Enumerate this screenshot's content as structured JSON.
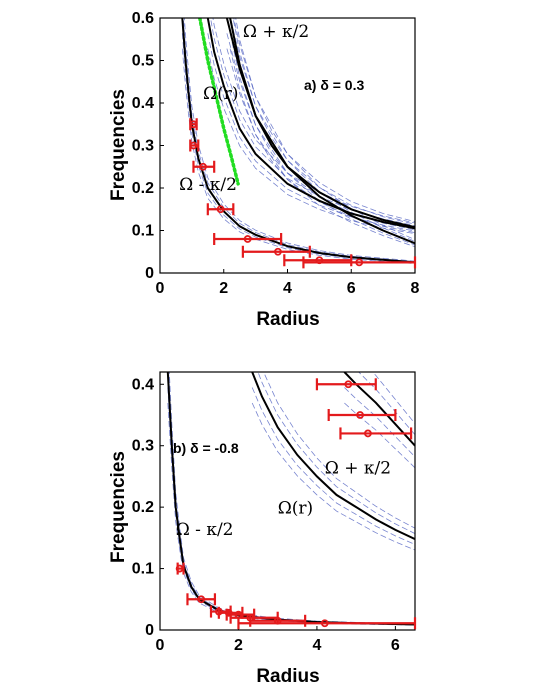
{
  "chart_data": [
    {
      "type": "line",
      "panel_label": "a) δ = 0.3",
      "xlabel": "Radius",
      "ylabel": "Frequencies",
      "xlim": [
        0,
        8
      ],
      "ylim": [
        0,
        0.6
      ],
      "xticks": [
        "0",
        "2",
        "4",
        "6",
        "8"
      ],
      "yticks": [
        "0",
        "0.1",
        "0.2",
        "0.3",
        "0.4",
        "0.5",
        "0.6"
      ],
      "annotations": [
        {
          "text": "Ω + κ/2",
          "x": 2.6,
          "y": 0.555
        },
        {
          "text": "Ω(r)",
          "x": 1.35,
          "y": 0.41
        },
        {
          "text": "Ω - κ/2",
          "x": 0.6,
          "y": 0.195
        }
      ],
      "curves": [
        {
          "label": "Ω + κ/2",
          "x": [
            1.5,
            1.7,
            2,
            2.5,
            3,
            4,
            5,
            6,
            7,
            8
          ],
          "y": [
            0.6,
            0.52,
            0.44,
            0.34,
            0.28,
            0.21,
            0.17,
            0.14,
            0.12,
            0.105
          ]
        },
        {
          "label": "Ω(r)",
          "x": [
            2.2,
            2.5,
            3,
            3.5,
            4,
            5,
            6,
            7,
            8
          ],
          "y": [
            0.6,
            0.49,
            0.37,
            0.3,
            0.25,
            0.18,
            0.135,
            0.1,
            0.07
          ]
        },
        {
          "label": "Ω - κ/2",
          "x": [
            0.7,
            0.8,
            0.9,
            1,
            1.2,
            1.5,
            2,
            2.5,
            3,
            4,
            5,
            6,
            8
          ],
          "y": [
            0.6,
            0.5,
            0.42,
            0.35,
            0.27,
            0.2,
            0.145,
            0.11,
            0.09,
            0.063,
            0.047,
            0.037,
            0.025
          ]
        },
        {
          "label": "Ω + κ/2 (outer)",
          "x": [
            2.1,
            2.5,
            3,
            4,
            5,
            6,
            7,
            8
          ],
          "y": [
            0.6,
            0.48,
            0.37,
            0.25,
            0.19,
            0.15,
            0.125,
            0.108
          ]
        }
      ],
      "green_dotted": {
        "x": [
          1.25,
          1.5,
          1.75,
          2,
          2.25,
          2.45
        ],
        "y": [
          0.6,
          0.5,
          0.42,
          0.34,
          0.27,
          0.21
        ]
      },
      "points": [
        {
          "x": 1.05,
          "y": 0.35,
          "xerr": [
            0.95,
            1.15
          ]
        },
        {
          "x": 1.05,
          "y": 0.3,
          "xerr": [
            0.95,
            1.2
          ]
        },
        {
          "x": 1.35,
          "y": 0.25,
          "xerr": [
            1.05,
            1.7
          ]
        },
        {
          "x": 1.9,
          "y": 0.15,
          "xerr": [
            1.5,
            2.3
          ]
        },
        {
          "x": 2.75,
          "y": 0.08,
          "xerr": [
            1.7,
            3.8
          ]
        },
        {
          "x": 3.7,
          "y": 0.05,
          "xerr": [
            2.6,
            4.7
          ]
        },
        {
          "x": 5.0,
          "y": 0.03,
          "xerr": [
            3.9,
            6.0
          ]
        },
        {
          "x": 6.25,
          "y": 0.025,
          "xerr": [
            4.5,
            8.0
          ]
        }
      ]
    },
    {
      "type": "line",
      "panel_label": "b) δ = -0.8",
      "xlabel": "Radius",
      "ylabel": "Frequencies",
      "xlim": [
        0,
        6.5
      ],
      "ylim": [
        0,
        0.42
      ],
      "xticks": [
        "0",
        "2",
        "4",
        "6"
      ],
      "yticks": [
        "0",
        "0.1",
        "0.2",
        "0.3",
        "0.4"
      ],
      "annotations": [
        {
          "text": "Ω + κ/2",
          "x": 4.2,
          "y": 0.255
        },
        {
          "text": "Ω(r)",
          "x": 3.0,
          "y": 0.19
        },
        {
          "text": "Ω - κ/2",
          "x": 0.4,
          "y": 0.155
        }
      ],
      "curves": [
        {
          "label": "Ω(r)",
          "x": [
            2.35,
            2.6,
            3,
            3.5,
            4,
            4.5,
            5,
            5.5,
            6,
            6.5
          ],
          "y": [
            0.42,
            0.38,
            0.33,
            0.285,
            0.25,
            0.22,
            0.2,
            0.18,
            0.163,
            0.148
          ]
        },
        {
          "label": "Ω + κ/2",
          "x": [
            4.7,
            5,
            5.5,
            6,
            6.5
          ],
          "y": [
            0.42,
            0.4,
            0.37,
            0.335,
            0.3
          ]
        },
        {
          "label": "Ω - κ/2",
          "x": [
            0.2,
            0.3,
            0.4,
            0.5,
            0.6,
            0.8,
            1,
            1.5,
            2,
            3,
            4,
            5,
            6.5
          ],
          "y": [
            0.42,
            0.3,
            0.2,
            0.15,
            0.105,
            0.07,
            0.05,
            0.032,
            0.024,
            0.017,
            0.013,
            0.011,
            0.009
          ]
        }
      ],
      "points": [
        {
          "x": 4.8,
          "y": 0.4,
          "xerr": [
            4.0,
            5.5
          ]
        },
        {
          "x": 5.1,
          "y": 0.35,
          "xerr": [
            4.3,
            6.0
          ]
        },
        {
          "x": 5.3,
          "y": 0.32,
          "xerr": [
            4.6,
            6.4
          ]
        },
        {
          "x": 0.5,
          "y": 0.1,
          "xerr": [
            0.45,
            0.6
          ]
        },
        {
          "x": 1.05,
          "y": 0.05,
          "xerr": [
            0.7,
            1.4
          ]
        },
        {
          "x": 1.5,
          "y": 0.03,
          "xerr": [
            1.3,
            1.8
          ]
        },
        {
          "x": 1.75,
          "y": 0.028,
          "xerr": [
            1.5,
            2.1
          ]
        },
        {
          "x": 2.0,
          "y": 0.025,
          "xerr": [
            1.7,
            2.4
          ]
        },
        {
          "x": 2.3,
          "y": 0.02,
          "xerr": [
            1.8,
            3.0
          ]
        },
        {
          "x": 3.0,
          "y": 0.015,
          "xerr": [
            2.3,
            3.7
          ]
        },
        {
          "x": 4.2,
          "y": 0.011,
          "xerr": [
            2.0,
            6.5
          ]
        }
      ]
    }
  ],
  "colors": {
    "model_curve": "#000000",
    "ensemble_curve": "#4a5bbf",
    "data_points": "#e31a1c",
    "dotted_curve": "#22dd22",
    "axes": "#000000"
  }
}
